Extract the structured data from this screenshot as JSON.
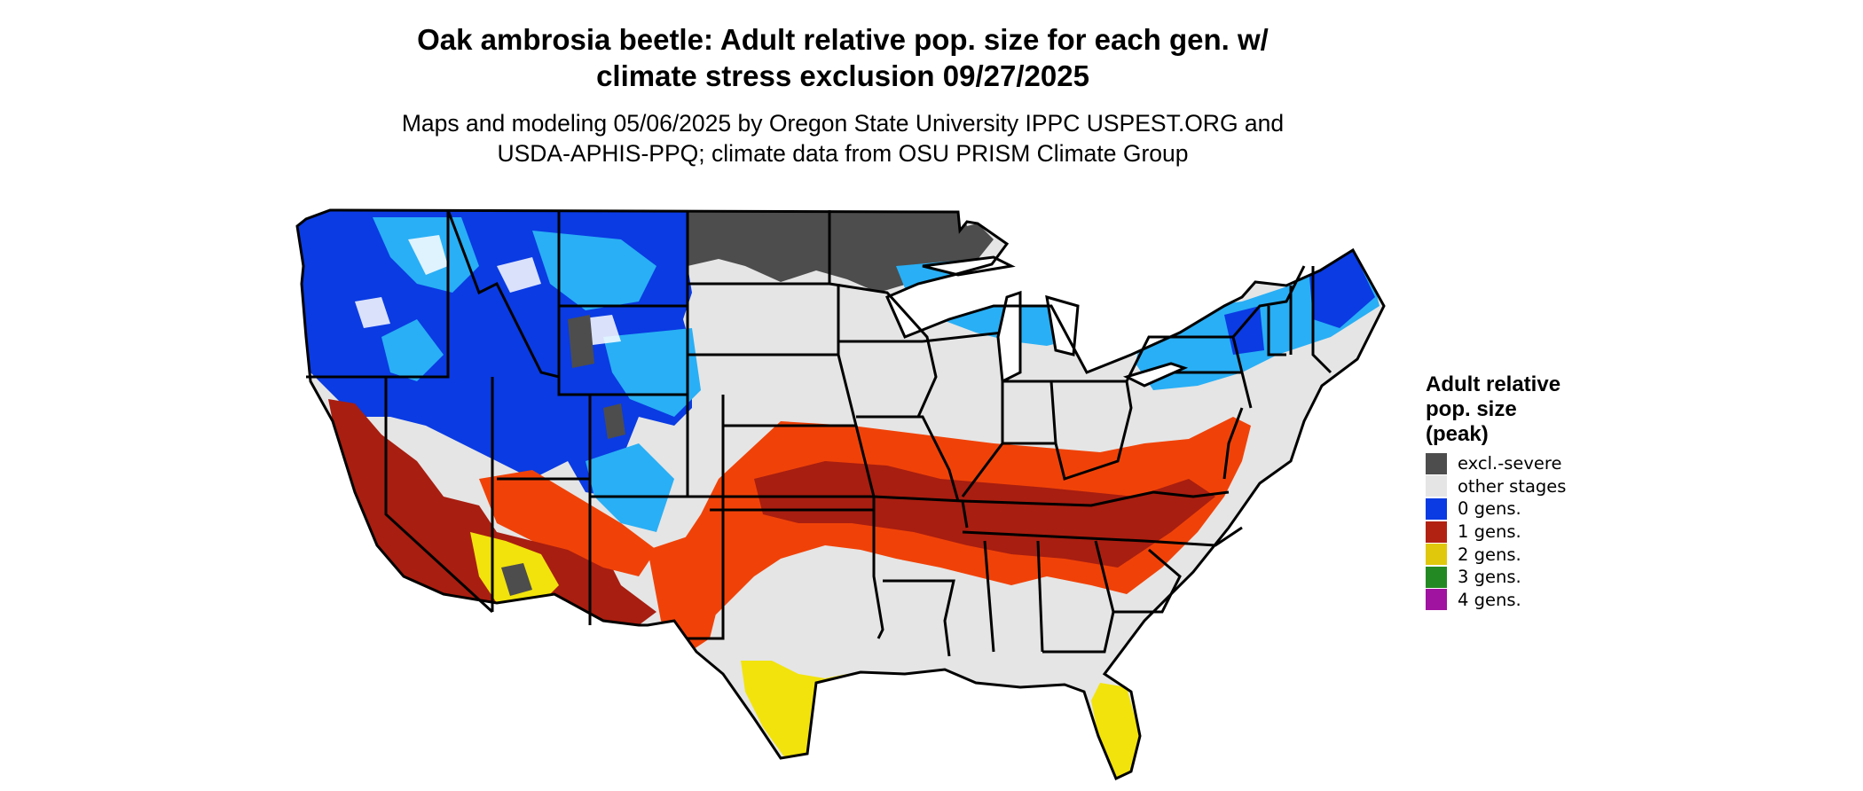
{
  "title": {
    "line1": "Oak ambrosia beetle: Adult relative pop. size for each gen. w/",
    "line2": "climate stress exclusion 09/27/2025"
  },
  "subtitle": {
    "line1": "Maps and modeling 05/06/2025 by Oregon State University IPPC USPEST.ORG and",
    "line2": "USDA-APHIS-PPQ; climate data from OSU PRISM Climate Group"
  },
  "legend": {
    "title_lines": [
      "Adult relative",
      "pop. size",
      "(peak)"
    ],
    "items": [
      {
        "label": "excl.-severe",
        "color": "#4d4d4d"
      },
      {
        "label": "other stages",
        "color": "#e5e5e5"
      },
      {
        "label": "0 gens.",
        "color": "#0a3be3"
      },
      {
        "label": "1 gens.",
        "color": "#b22212"
      },
      {
        "label": "2 gens.",
        "color": "#e0c80c"
      },
      {
        "label": "3 gens.",
        "color": "#238a23"
      },
      {
        "label": "4 gens.",
        "color": "#a012a0"
      }
    ]
  },
  "map": {
    "region": "Contiguous United States",
    "colors": {
      "background": "#e5e5e5",
      "severe": "#4d4d4d",
      "blue_dark": "#0a3be3",
      "blue_light": "#29aff5",
      "red_orange": "#f04208",
      "red_dark": "#a81e10",
      "yellow": "#f2e30c",
      "white_patch": "#ffffff",
      "border": "#000000"
    }
  }
}
